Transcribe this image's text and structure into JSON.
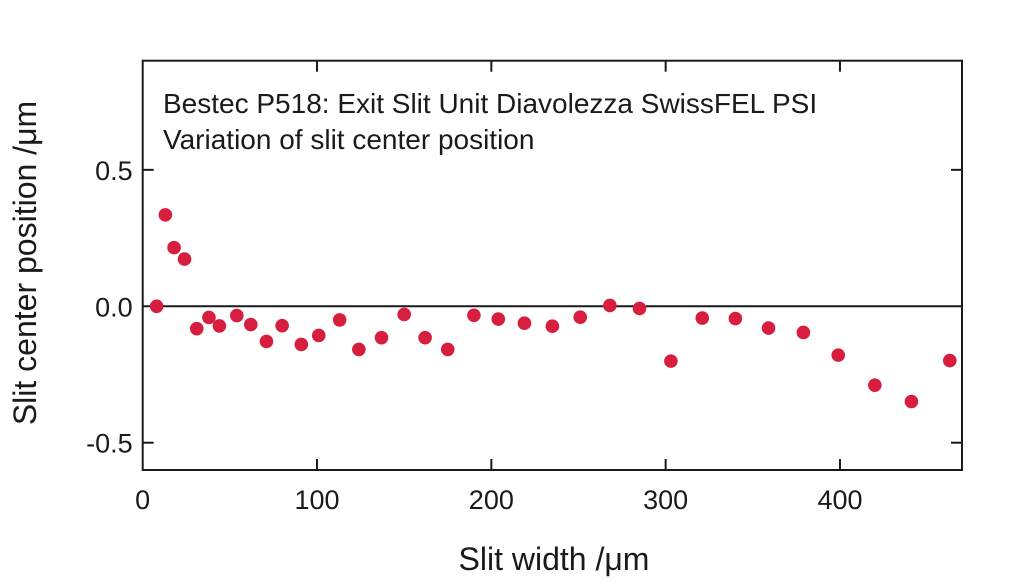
{
  "chart_data": {
    "type": "scatter",
    "title_line1": "Bestec P518: Exit Slit Unit Diavolezza SwissFEL PSI",
    "title_line2": "Variation of slit center position",
    "xlabel": "Slit width /μm",
    "ylabel": "Slit center position /μm",
    "xlim": [
      0,
      470
    ],
    "ylim": [
      -0.6,
      0.9
    ],
    "xticks": [
      {
        "value": 0,
        "label": "0"
      },
      {
        "value": 100,
        "label": "100"
      },
      {
        "value": 200,
        "label": "200"
      },
      {
        "value": 300,
        "label": "300"
      },
      {
        "value": 400,
        "label": "400"
      }
    ],
    "yticks": [
      {
        "value": 0.5,
        "label": "0.5"
      },
      {
        "value": 0.0,
        "label": "0.0"
      },
      {
        "value": -0.5,
        "label": "-0.5"
      }
    ],
    "grid": false,
    "legend_position": "none",
    "zero_line_y": 0.0,
    "marker": {
      "shape": "circle",
      "radius_px": 6.8,
      "color": "#d81e3e"
    },
    "axis_color": "#1a1a1a",
    "background_color": "#ffffff",
    "points": [
      [
        8,
        0.0
      ],
      [
        13,
        0.335
      ],
      [
        18,
        0.215
      ],
      [
        24,
        0.173
      ],
      [
        31,
        -0.082
      ],
      [
        38,
        -0.041
      ],
      [
        44,
        -0.072
      ],
      [
        54,
        -0.034
      ],
      [
        62,
        -0.067
      ],
      [
        71,
        -0.129
      ],
      [
        80,
        -0.071
      ],
      [
        91,
        -0.14
      ],
      [
        101,
        -0.107
      ],
      [
        113,
        -0.05
      ],
      [
        124,
        -0.158
      ],
      [
        137,
        -0.115
      ],
      [
        150,
        -0.03
      ],
      [
        162,
        -0.115
      ],
      [
        175,
        -0.158
      ],
      [
        190,
        -0.033
      ],
      [
        204,
        -0.047
      ],
      [
        219,
        -0.062
      ],
      [
        235,
        -0.073
      ],
      [
        251,
        -0.04
      ],
      [
        268,
        0.003
      ],
      [
        285,
        -0.008
      ],
      [
        303,
        -0.201
      ],
      [
        321,
        -0.043
      ],
      [
        340,
        -0.045
      ],
      [
        359,
        -0.08
      ],
      [
        379,
        -0.096
      ],
      [
        399,
        -0.179
      ],
      [
        420,
        -0.289
      ],
      [
        441,
        -0.349
      ],
      [
        463,
        -0.199
      ]
    ]
  }
}
